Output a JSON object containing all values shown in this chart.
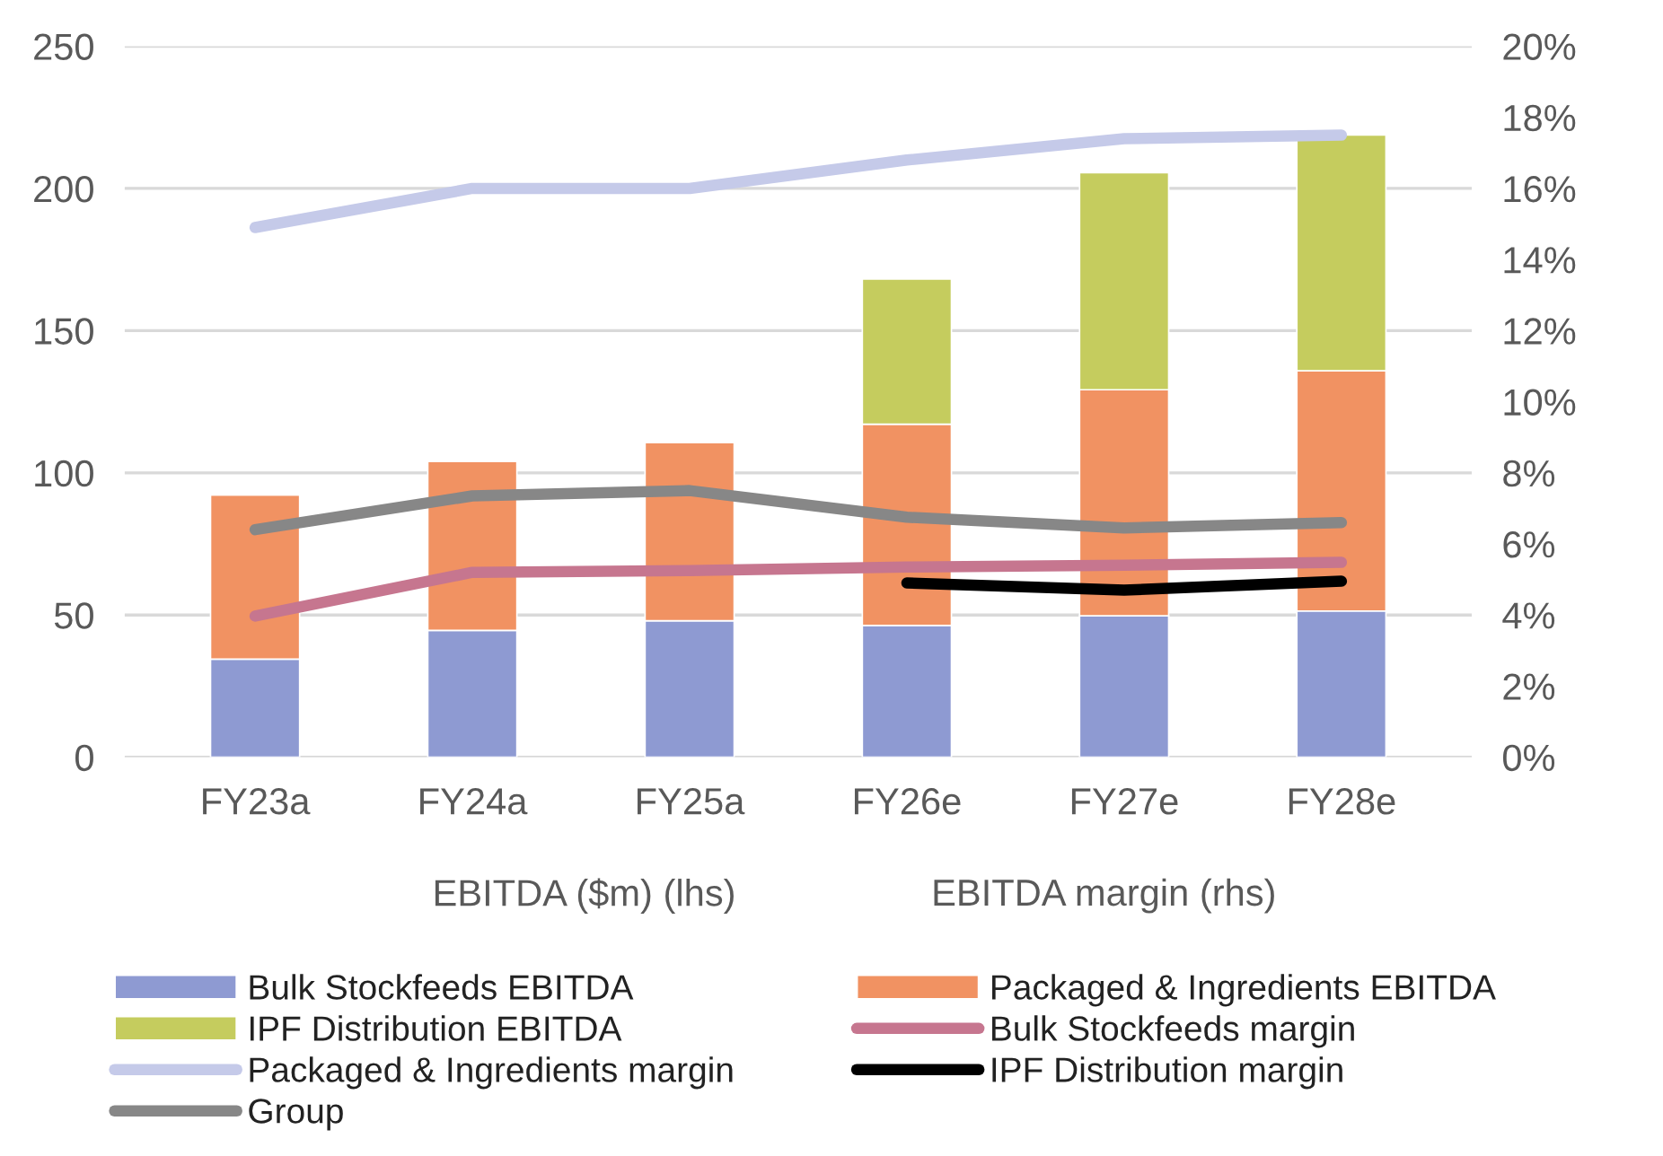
{
  "chart_data": {
    "type": "bar",
    "stacked": true,
    "categories": [
      "FY23a",
      "FY24a",
      "FY25a",
      "FY26e",
      "FY27e",
      "FY28e"
    ],
    "series": [
      {
        "name": "Bulk Stockfeeds EBITDA",
        "color": "#8e9ad2",
        "values": [
          34.5,
          44.6,
          48.0,
          46.3,
          49.7,
          51.4
        ]
      },
      {
        "name": "Packaged & Ingredients EBITDA",
        "color": "#f19262",
        "values": [
          57.7,
          59.4,
          62.6,
          70.8,
          79.5,
          84.5
        ]
      },
      {
        "name": "IPF Distribution EBITDA",
        "color": "#c5cc5e",
        "values": [
          null,
          null,
          null,
          51.0,
          76.3,
          82.9
        ]
      },
      {
        "name": "Bulk Stockfeeds margin",
        "type": "line",
        "axis": "y2",
        "color": "#c6768f",
        "values": [
          3.97,
          5.2,
          5.25,
          5.35,
          5.4,
          5.48
        ]
      },
      {
        "name": "Packaged & Ingredients margin",
        "type": "line",
        "axis": "y2",
        "color": "#c5cae9",
        "values": [
          14.9,
          16.0,
          16.0,
          16.8,
          17.4,
          17.5
        ]
      },
      {
        "name": "IPF Distribution margin",
        "type": "line",
        "axis": "y2",
        "color": "#000000",
        "values": [
          null,
          null,
          null,
          4.9,
          4.7,
          4.95
        ]
      },
      {
        "name": "Group",
        "type": "line",
        "axis": "y2",
        "color": "#878787",
        "values": [
          6.4,
          7.35,
          7.5,
          6.75,
          6.45,
          6.6
        ]
      }
    ],
    "ylim": [
      0,
      250
    ],
    "yticks": [
      0,
      50,
      100,
      150,
      200,
      250
    ],
    "y2lim": [
      0,
      20
    ],
    "y2ticks": [
      {
        "value": 0,
        "label": "0%"
      },
      {
        "value": 2,
        "label": "2%"
      },
      {
        "value": 4,
        "label": "4%"
      },
      {
        "value": 6,
        "label": "6%"
      },
      {
        "value": 8,
        "label": "8%"
      },
      {
        "value": 10,
        "label": "10%"
      },
      {
        "value": 12,
        "label": "12%"
      },
      {
        "value": 14,
        "label": "14%"
      },
      {
        "value": 16,
        "label": "16%"
      },
      {
        "value": 18,
        "label": "18%"
      },
      {
        "value": 20,
        "label": "20%"
      }
    ],
    "annotations": [
      "EBITDA ($m) (lhs)",
      "EBITDA margin (rhs)"
    ],
    "grid": "y",
    "legend": "bottom",
    "marker": "none",
    "line_style": "solid"
  }
}
